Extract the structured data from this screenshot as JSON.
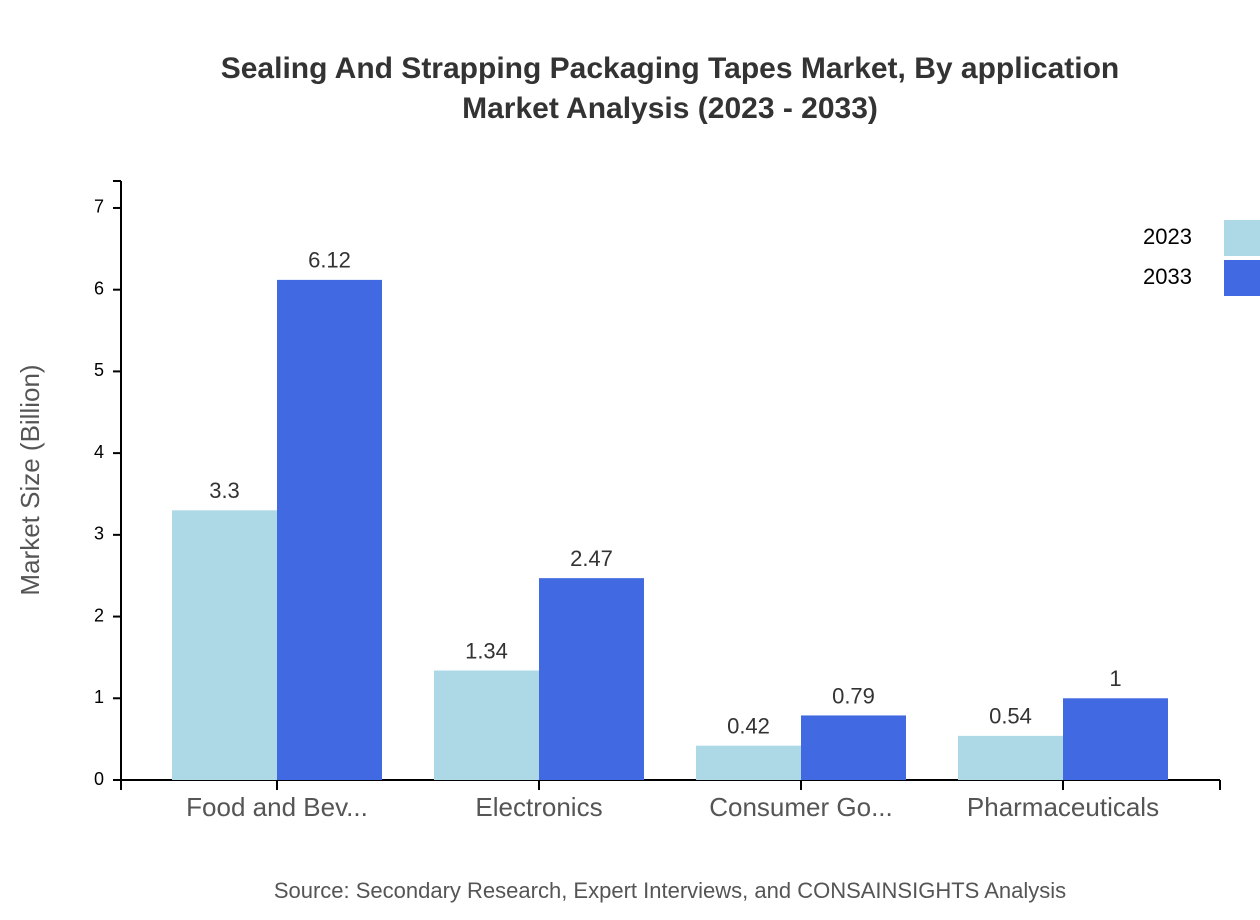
{
  "chart_data": {
    "type": "bar",
    "title": "Sealing And Strapping Packaging Tapes Market, By application",
    "subtitle": "Market Analysis (2023 - 2033)",
    "y_label": "Market Size (Billion)",
    "source": "Source: Secondary Research, Expert Interviews, and CONSAINSIGHTS Analysis",
    "categories": [
      "Food and Bev...",
      "Electronics",
      "Consumer Go...",
      "Pharmaceuticals"
    ],
    "series": [
      {
        "name": "2023",
        "color": "#add8e6",
        "values": [
          3.3,
          1.34,
          0.42,
          0.54
        ]
      },
      {
        "name": "2033",
        "color": "#4169e1",
        "values": [
          6.12,
          2.47,
          0.79,
          1
        ]
      }
    ],
    "ylim": [
      0,
      7.33
    ],
    "yticks": [
      0,
      1,
      2,
      3,
      4,
      5,
      6,
      7
    ],
    "legend": "top-right"
  }
}
